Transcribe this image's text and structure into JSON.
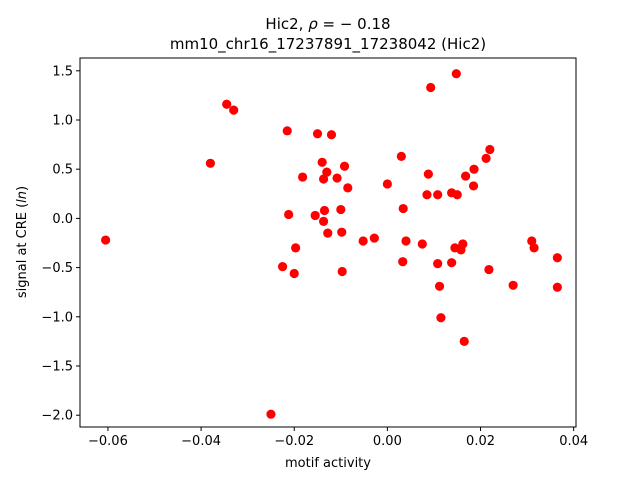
{
  "chart_data": {
    "type": "scatter",
    "title_line1_prefix": "Hic2, ",
    "title_line1_rho": "ρ",
    "title_line1_value": " = − 0.18",
    "title_line2": "mm10_chr16_17237891_17238042 (Hic2)",
    "xlabel": "motif activity",
    "ylabel_prefix": "signal at CRE (",
    "ylabel_italic": "ln",
    "ylabel_suffix": ")",
    "xlim": [
      -0.066,
      0.0405
    ],
    "ylim": [
      -2.12,
      1.63
    ],
    "xticks": [
      -0.06,
      -0.04,
      -0.02,
      0.0,
      0.02,
      0.04
    ],
    "xtick_labels": [
      "−0.06",
      "−0.04",
      "−0.02",
      "0.00",
      "0.02",
      "0.04"
    ],
    "yticks": [
      -2.0,
      -1.5,
      -1.0,
      -0.5,
      0.0,
      0.5,
      1.0,
      1.5
    ],
    "ytick_labels": [
      "−2.0",
      "−1.5",
      "−1.0",
      "−0.5",
      "0.0",
      "0.5",
      "1.0",
      "1.5"
    ],
    "marker_color": "#ff0000",
    "grid": false,
    "points": [
      [
        -0.0605,
        -0.22
      ],
      [
        -0.038,
        0.56
      ],
      [
        -0.0345,
        1.16
      ],
      [
        -0.033,
        1.1
      ],
      [
        -0.025,
        -1.99
      ],
      [
        -0.0225,
        -0.49
      ],
      [
        -0.0215,
        0.89
      ],
      [
        -0.0212,
        0.04
      ],
      [
        -0.02,
        -0.56
      ],
      [
        -0.0197,
        -0.3
      ],
      [
        -0.0182,
        0.42
      ],
      [
        -0.0155,
        0.03
      ],
      [
        -0.015,
        0.86
      ],
      [
        -0.014,
        0.57
      ],
      [
        -0.0137,
        -0.03
      ],
      [
        -0.0137,
        0.4
      ],
      [
        -0.0135,
        0.08
      ],
      [
        -0.013,
        0.47
      ],
      [
        -0.0128,
        -0.15
      ],
      [
        -0.012,
        0.85
      ],
      [
        -0.0108,
        0.41
      ],
      [
        -0.01,
        0.09
      ],
      [
        -0.0098,
        -0.14
      ],
      [
        -0.0097,
        -0.54
      ],
      [
        -0.0092,
        0.53
      ],
      [
        -0.0085,
        0.31
      ],
      [
        -0.0052,
        -0.23
      ],
      [
        -0.0028,
        -0.2
      ],
      [
        0.0,
        0.35
      ],
      [
        0.003,
        0.63
      ],
      [
        0.0033,
        -0.44
      ],
      [
        0.0034,
        0.1
      ],
      [
        0.004,
        -0.23
      ],
      [
        0.0075,
        -0.26
      ],
      [
        0.0085,
        0.24
      ],
      [
        0.0088,
        0.45
      ],
      [
        0.0093,
        1.33
      ],
      [
        0.0108,
        0.24
      ],
      [
        0.0108,
        -0.46
      ],
      [
        0.0112,
        -0.69
      ],
      [
        0.0115,
        -1.01
      ],
      [
        0.0138,
        -0.45
      ],
      [
        0.0138,
        0.26
      ],
      [
        0.0145,
        -0.3
      ],
      [
        0.0148,
        1.47
      ],
      [
        0.015,
        0.24
      ],
      [
        0.0158,
        -0.32
      ],
      [
        0.0162,
        -0.26
      ],
      [
        0.0165,
        -1.25
      ],
      [
        0.0168,
        0.43
      ],
      [
        0.0185,
        0.33
      ],
      [
        0.0186,
        0.5
      ],
      [
        0.0212,
        0.61
      ],
      [
        0.0218,
        -0.52
      ],
      [
        0.022,
        0.7
      ],
      [
        0.027,
        -0.68
      ],
      [
        0.031,
        -0.23
      ],
      [
        0.0315,
        -0.3
      ],
      [
        0.0365,
        -0.4
      ],
      [
        0.0365,
        -0.7
      ]
    ]
  }
}
